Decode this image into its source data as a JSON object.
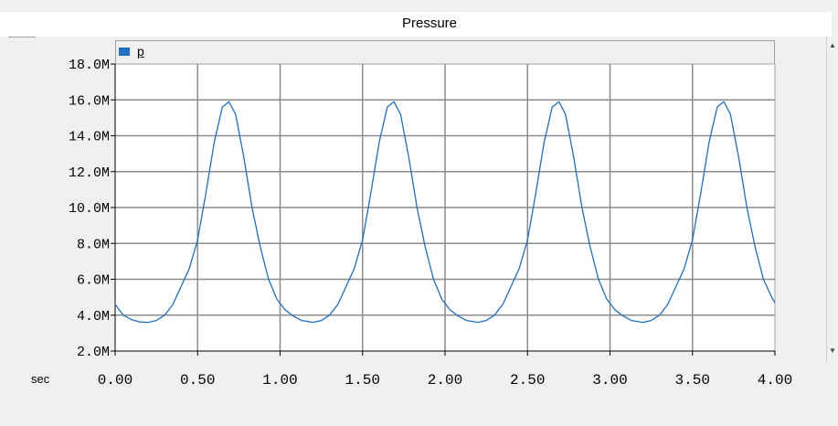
{
  "window": {
    "title": "Pressure"
  },
  "legend": {
    "series_name": "p",
    "color": "#1f6fc5"
  },
  "x_unit": "sec",
  "scrollbar": {
    "up_icon": "up-arrow-icon",
    "down_icon": "down-arrow-icon"
  },
  "chart_data": {
    "type": "line",
    "title": "Pressure",
    "xlabel": "sec",
    "ylabel": "",
    "xlim": [
      0,
      4
    ],
    "ylim": [
      2000000,
      18000000
    ],
    "x_ticks": [
      0,
      0.5,
      1,
      1.5,
      2,
      2.5,
      3,
      3.5,
      4
    ],
    "x_tick_labels": [
      "0.00",
      "0.50",
      "1.00",
      "1.50",
      "2.00",
      "2.50",
      "3.00",
      "3.50",
      "4.00"
    ],
    "y_ticks": [
      2000000,
      4000000,
      6000000,
      8000000,
      10000000,
      12000000,
      14000000,
      16000000,
      18000000
    ],
    "y_tick_labels": [
      "2.0M",
      "4.0M",
      "6.0M",
      "8.0M",
      "10.0M",
      "12.0M",
      "14.0M",
      "16.0M",
      "18.0M"
    ],
    "grid": true,
    "legend_position": "top-left",
    "series": [
      {
        "name": "p",
        "color": "#1f6fc5",
        "x": [
          0.0,
          0.05,
          0.1,
          0.15,
          0.2,
          0.25,
          0.3,
          0.35,
          0.4,
          0.45,
          0.5,
          0.55,
          0.6,
          0.65,
          0.69,
          0.73,
          0.78,
          0.83,
          0.88,
          0.93,
          0.98,
          1.03,
          1.08,
          1.13,
          1.2,
          1.25,
          1.3,
          1.35,
          1.4,
          1.45,
          1.5,
          1.55,
          1.6,
          1.65,
          1.69,
          1.73,
          1.78,
          1.83,
          1.88,
          1.93,
          1.98,
          2.03,
          2.08,
          2.13,
          2.2,
          2.25,
          2.3,
          2.35,
          2.4,
          2.45,
          2.5,
          2.55,
          2.6,
          2.65,
          2.69,
          2.73,
          2.78,
          2.83,
          2.88,
          2.93,
          2.98,
          3.03,
          3.08,
          3.13,
          3.2,
          3.25,
          3.3,
          3.35,
          3.4,
          3.45,
          3.5,
          3.55,
          3.6,
          3.65,
          3.69,
          3.73,
          3.78,
          3.83,
          3.88,
          3.93,
          3.98,
          4.0
        ],
        "values": [
          4.6,
          4.0,
          3.75,
          3.62,
          3.6,
          3.7,
          4.0,
          4.6,
          5.6,
          6.6,
          8.2,
          10.8,
          13.6,
          15.6,
          15.9,
          15.2,
          12.8,
          10.0,
          7.8,
          6.0,
          4.9,
          4.3,
          3.95,
          3.7,
          3.6,
          3.7,
          4.0,
          4.6,
          5.6,
          6.6,
          8.2,
          10.8,
          13.6,
          15.6,
          15.9,
          15.2,
          12.8,
          10.0,
          7.8,
          6.0,
          4.9,
          4.3,
          3.95,
          3.7,
          3.6,
          3.7,
          4.0,
          4.6,
          5.6,
          6.6,
          8.2,
          10.8,
          13.6,
          15.6,
          15.9,
          15.2,
          12.8,
          10.0,
          7.8,
          6.0,
          4.9,
          4.3,
          3.95,
          3.7,
          3.6,
          3.7,
          4.0,
          4.6,
          5.6,
          6.6,
          8.2,
          10.8,
          13.6,
          15.6,
          15.9,
          15.2,
          12.8,
          10.0,
          7.8,
          6.0,
          5.0,
          4.7
        ],
        "value_unit_multiplier": 1000000
      }
    ]
  }
}
